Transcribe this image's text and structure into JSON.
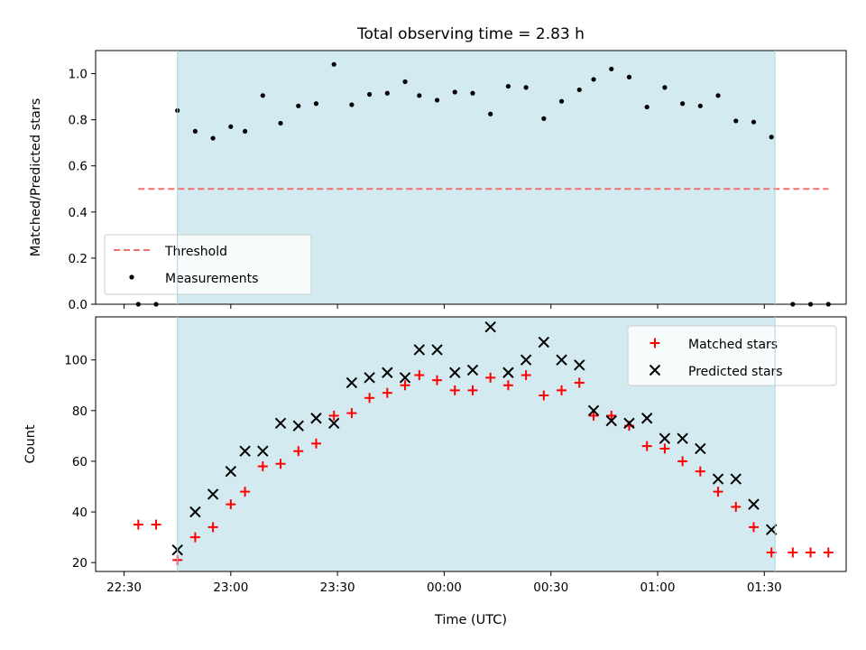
{
  "chart_data": [
    {
      "type": "scatter",
      "title": "Total observing time = 2.83 h",
      "xlabel": "",
      "ylabel": "Matched/Predicted stars",
      "ylim": [
        0,
        1.1
      ],
      "yticks": [
        "0.0",
        "0.2",
        "0.4",
        "0.6",
        "0.8",
        "1.0"
      ],
      "shaded_span": [
        "22:45",
        "01:33"
      ],
      "shade_color": "#d3eaf0",
      "legend_position": "lower-left",
      "threshold": {
        "name": "Threshold",
        "value": 0.5,
        "x_range": [
          "22:34",
          "01:48"
        ],
        "color": "#f07070"
      },
      "series": [
        {
          "name": "Measurements",
          "color": "#000000",
          "x": [
            "22:34",
            "22:39",
            "22:45",
            "22:50",
            "22:55",
            "23:00",
            "23:04",
            "23:09",
            "23:14",
            "23:19",
            "23:24",
            "23:29",
            "23:34",
            "23:39",
            "23:44",
            "23:49",
            "23:53",
            "23:58",
            "00:03",
            "00:08",
            "00:13",
            "00:18",
            "00:23",
            "00:28",
            "00:33",
            "00:38",
            "00:42",
            "00:47",
            "00:52",
            "00:57",
            "01:02",
            "01:07",
            "01:12",
            "01:17",
            "01:22",
            "01:27",
            "01:32",
            "01:38",
            "01:43",
            "01:48"
          ],
          "y": [
            0.0,
            0.0,
            0.84,
            0.75,
            0.72,
            0.77,
            0.75,
            0.905,
            0.785,
            0.86,
            0.87,
            1.04,
            0.865,
            0.91,
            0.915,
            0.965,
            0.905,
            0.885,
            0.92,
            0.915,
            0.825,
            0.945,
            0.94,
            0.805,
            0.88,
            0.93,
            0.975,
            1.02,
            0.985,
            0.855,
            0.94,
            0.87,
            0.86,
            0.905,
            0.795,
            0.79,
            0.725,
            0.0,
            0.0,
            0.0
          ]
        }
      ]
    },
    {
      "type": "scatter",
      "title": "",
      "xlabel": "Time (UTC)",
      "ylabel": "Count",
      "ylim": [
        16.5,
        117
      ],
      "yticks": [
        "20",
        "40",
        "60",
        "80",
        "100"
      ],
      "xlim": [
        "22:22",
        "01:53"
      ],
      "xticks": [
        "22:30",
        "23:00",
        "23:30",
        "00:00",
        "00:30",
        "01:00",
        "01:30"
      ],
      "shaded_span": [
        "22:45",
        "01:33"
      ],
      "shade_color": "#d3eaf0",
      "legend_position": "upper-right",
      "series": [
        {
          "name": "Matched stars",
          "marker": "+",
          "color": "#ff0000",
          "x": [
            "22:34",
            "22:39",
            "22:45",
            "22:50",
            "22:55",
            "23:00",
            "23:04",
            "23:09",
            "23:14",
            "23:19",
            "23:24",
            "23:29",
            "23:34",
            "23:39",
            "23:44",
            "23:49",
            "23:53",
            "23:58",
            "00:03",
            "00:08",
            "00:13",
            "00:18",
            "00:23",
            "00:28",
            "00:33",
            "00:38",
            "00:42",
            "00:47",
            "00:52",
            "00:57",
            "01:02",
            "01:07",
            "01:12",
            "01:17",
            "01:22",
            "01:27",
            "01:32",
            "01:38",
            "01:43",
            "01:48"
          ],
          "y": [
            35,
            35,
            21,
            30,
            34,
            43,
            48,
            58,
            59,
            64,
            67,
            78,
            79,
            85,
            87,
            90,
            94,
            92,
            88,
            88,
            93,
            90,
            94,
            86,
            88,
            91,
            78,
            78,
            74,
            66,
            65,
            60,
            56,
            48,
            42,
            34,
            24,
            24,
            24,
            24
          ]
        },
        {
          "name": "Predicted stars",
          "marker": "x",
          "color": "#000000",
          "x": [
            "22:45",
            "22:50",
            "22:55",
            "23:00",
            "23:04",
            "23:09",
            "23:14",
            "23:19",
            "23:24",
            "23:29",
            "23:34",
            "23:39",
            "23:44",
            "23:49",
            "23:53",
            "23:58",
            "00:03",
            "00:08",
            "00:13",
            "00:18",
            "00:23",
            "00:28",
            "00:33",
            "00:38",
            "00:42",
            "00:47",
            "00:52",
            "00:57",
            "01:02",
            "01:07",
            "01:12",
            "01:17",
            "01:22",
            "01:27",
            "01:32"
          ],
          "y": [
            25,
            40,
            47,
            56,
            64,
            64,
            75,
            74,
            77,
            75,
            91,
            93,
            95,
            93,
            104,
            104,
            95,
            96,
            113,
            95,
            100,
            107,
            100,
            98,
            80,
            76,
            75,
            77,
            69,
            69,
            65,
            53,
            53,
            43,
            33
          ]
        }
      ]
    }
  ]
}
